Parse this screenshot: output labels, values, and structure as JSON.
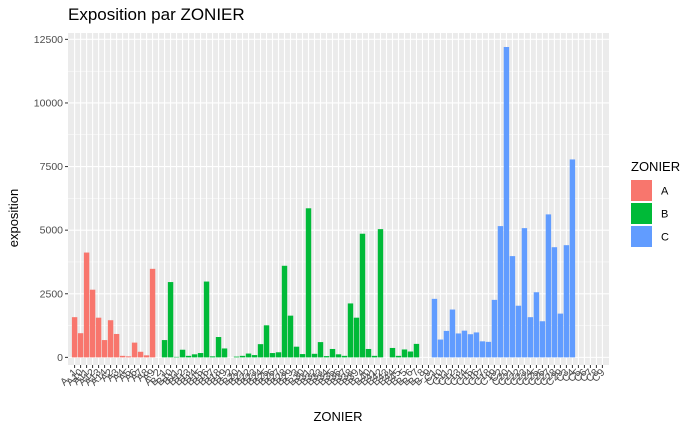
{
  "chart_data": {
    "type": "bar",
    "title": "Exposition par ZONIER",
    "xlabel": "ZONIER",
    "ylabel": "exposition",
    "ylim": [
      -300,
      12750
    ],
    "yticks": [
      0,
      2500,
      5000,
      7500,
      10000,
      12500
    ],
    "ytick_labels": [
      "0",
      "2500",
      "5000",
      "7500",
      "10000",
      "12500"
    ],
    "grid": true,
    "legend_position": "right",
    "legend": {
      "title": "ZONIER",
      "entries": [
        {
          "label": "A",
          "color": "#F8766D"
        },
        {
          "label": "B",
          "color": "#00BA38"
        },
        {
          "label": "C",
          "color": "#619CFF"
        }
      ]
    },
    "series": [
      {
        "name": "A",
        "color": "#F8766D",
        "categories": [
          "A1",
          "A10",
          "A11",
          "A12",
          "A13",
          "A14",
          "A2",
          "A3",
          "A4",
          "A5",
          "A6",
          "A7",
          "A8",
          "A9",
          "A_2"
        ],
        "values": [
          1580,
          950,
          4120,
          2660,
          1560,
          680,
          1460,
          920,
          60,
          40,
          580,
          220,
          80,
          3480,
          0
        ]
      },
      {
        "name": "B",
        "color": "#00BA38",
        "categories": [
          "B1",
          "B10",
          "B11",
          "B12",
          "B13",
          "B14",
          "B15",
          "B16",
          "B17",
          "B18",
          "B19",
          "B2",
          "B20",
          "B21",
          "B22",
          "B23",
          "B24",
          "B25",
          "B26",
          "B27",
          "B28",
          "B29",
          "B3",
          "B30",
          "B31",
          "B32",
          "B33",
          "B34",
          "B35",
          "B36",
          "B37",
          "B38",
          "B39",
          "B4",
          "B40",
          "B41",
          "B42",
          "B43",
          "B44",
          "B45",
          "B5",
          "B6",
          "B7",
          "B8",
          "B9"
        ],
        "values": [
          680,
          2960,
          20,
          300,
          60,
          120,
          170,
          2980,
          40,
          800,
          350,
          0,
          30,
          60,
          150,
          90,
          520,
          1260,
          170,
          200,
          3600,
          1640,
          420,
          130,
          5860,
          140,
          600,
          50,
          330,
          120,
          60,
          2120,
          1560,
          4860,
          330,
          60,
          5040,
          0,
          370,
          60,
          310,
          230,
          530,
          0,
          0
        ]
      },
      {
        "name": "C",
        "color": "#619CFF",
        "categories": [
          "C1",
          "C10",
          "C11",
          "C12",
          "C13",
          "C14",
          "C15",
          "C16",
          "C17",
          "C18",
          "C19",
          "C2",
          "C20",
          "C21",
          "C22",
          "C23",
          "C24",
          "C25",
          "C26",
          "C27",
          "C28",
          "C29",
          "C3",
          "C4",
          "C5",
          "C6",
          "C7",
          "C8",
          "C9"
        ],
        "values": [
          2300,
          700,
          1040,
          1880,
          940,
          1050,
          910,
          980,
          630,
          610,
          2260,
          5160,
          12200,
          3980,
          2030,
          5080,
          1580,
          2560,
          1420,
          5620,
          4330,
          1720,
          4410,
          7780,
          0,
          0,
          0,
          0,
          0
        ]
      }
    ],
    "x_tick_labels": [
      "A_1",
      "A10",
      "A11",
      "A12",
      "A13",
      "A14",
      "A2",
      "A3",
      "A4",
      "A5",
      "A6",
      "A7",
      "A8",
      "A9",
      "A_2",
      "B_1",
      "B10",
      "B11",
      "B12",
      "B13",
      "B14",
      "B15",
      "B16",
      "B17",
      "B18",
      "B19",
      "B_2",
      "B20",
      "B21",
      "B22",
      "B23",
      "B24",
      "B25",
      "B26",
      "B27",
      "B28",
      "B29",
      "B_3",
      "B30",
      "B31",
      "B32",
      "B33",
      "B34",
      "B35",
      "B36",
      "B37",
      "B38",
      "B39",
      "B_4",
      "B40",
      "B41",
      "B42",
      "B43",
      "B44",
      "B45",
      "B_5",
      "B_6",
      "B_7",
      "B_8",
      "B_9",
      "C1",
      "C10",
      "C11",
      "C12",
      "C13",
      "C14",
      "C15",
      "C16",
      "C17",
      "C18",
      "C19",
      "C2",
      "C20",
      "C21",
      "C22",
      "C23",
      "C24",
      "C25",
      "C26",
      "C27",
      "C28",
      "C29",
      "C3",
      "C4",
      "C5",
      "C6",
      "C7",
      "C8",
      "C9"
    ]
  }
}
